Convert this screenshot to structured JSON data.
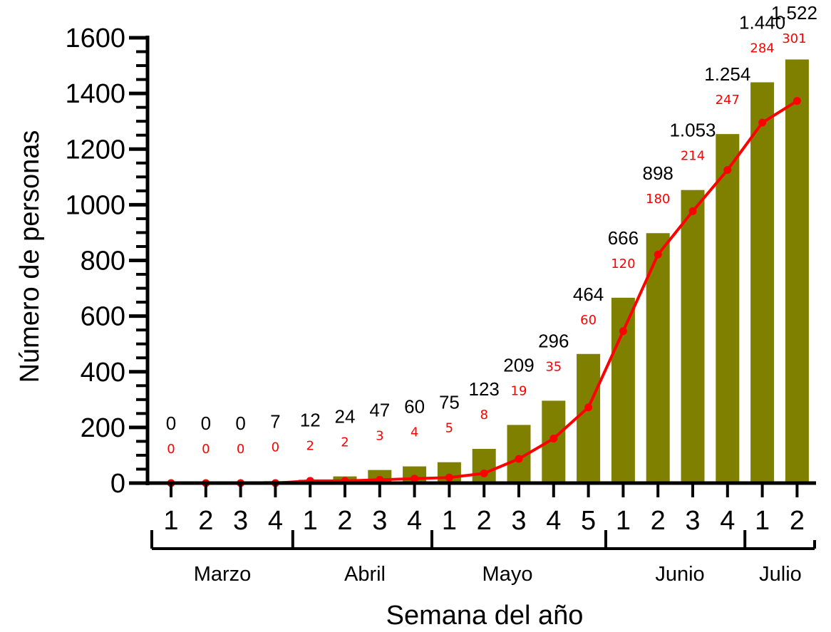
{
  "chart_data": {
    "type": "bar",
    "ylabel": "Número de personas",
    "xlabel": "Semana del año",
    "ylim": [
      0,
      1600
    ],
    "yticks": [
      "0",
      "200",
      "400",
      "600",
      "800",
      "1000",
      "1200",
      "1400",
      "1600"
    ],
    "categories": [
      "1",
      "2",
      "3",
      "4",
      "1",
      "2",
      "3",
      "4",
      "1",
      "2",
      "3",
      "4",
      "5",
      "1",
      "2",
      "3",
      "4",
      "1",
      "2"
    ],
    "months": [
      {
        "name": "Marzo",
        "weeks": 4
      },
      {
        "name": "Abril",
        "weeks": 4
      },
      {
        "name": "Mayo",
        "weeks": 5
      },
      {
        "name": "Junio",
        "weeks": 4
      },
      {
        "name": "Julio",
        "weeks": 2
      }
    ],
    "series": [
      {
        "type": "bar",
        "color": "#808000",
        "values": [
          0,
          0,
          0,
          7,
          12,
          24,
          47,
          60,
          75,
          123,
          209,
          296,
          464,
          666,
          898,
          1053,
          1254,
          1440,
          1522
        ],
        "labels": [
          "0",
          "0",
          "0",
          "7",
          "12",
          "24",
          "47",
          "60",
          "75",
          "123",
          "209",
          "296",
          "464",
          "666",
          "898",
          "1.053",
          "1.254",
          "1.440",
          "1.522"
        ]
      },
      {
        "type": "line",
        "color": "#ff0000",
        "values": [
          0,
          0,
          0,
          0,
          2,
          2,
          3,
          4,
          5,
          8,
          19,
          35,
          60,
          120,
          180,
          214,
          247,
          284,
          301
        ],
        "line_values": [
          0,
          0,
          0,
          0,
          8,
          8,
          12,
          16,
          20,
          35,
          87,
          160,
          272,
          546,
          821,
          977,
          1125,
          1295,
          1373
        ],
        "labels": [
          "0",
          "0",
          "0",
          "0",
          "2",
          "2",
          "3",
          "4",
          "5",
          "8",
          "19",
          "35",
          "60",
          "120",
          "180",
          "214",
          "247",
          "284",
          "301"
        ]
      }
    ]
  }
}
